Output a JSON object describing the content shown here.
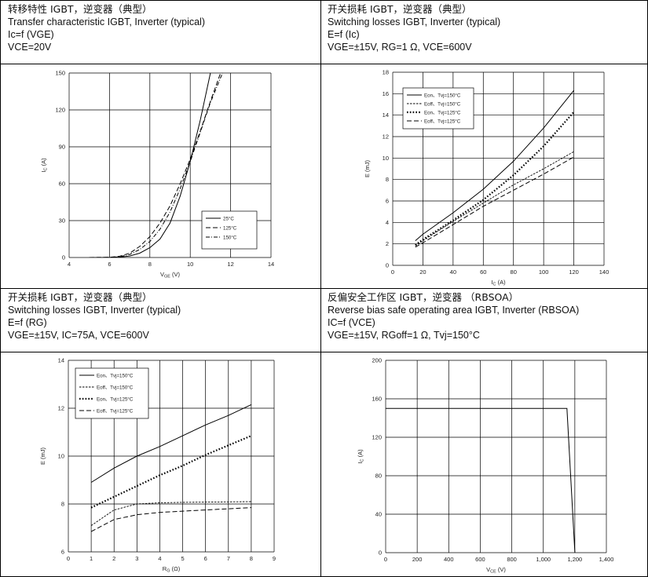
{
  "cells": [
    {
      "caption": {
        "line1": "转移特性 IGBT，逆变器（典型）",
        "line2": "Transfer characteristic IGBT, Inverter (typical)",
        "line3": "Ic=f (VGE)",
        "line4": "VCE=20V"
      },
      "chart_data": {
        "type": "line",
        "xlabel": "VGE (V)",
        "ylabel": "IC (A)",
        "xlim": [
          4,
          14
        ],
        "ylim": [
          0,
          150
        ],
        "xticks": [
          "4",
          "6",
          "8",
          "10",
          "12",
          "14"
        ],
        "yticks": [
          "0",
          "30",
          "60",
          "90",
          "120",
          "150"
        ],
        "grid": true,
        "legend_position": "bottom-right",
        "series": [
          {
            "name": "25°C",
            "style": "solid",
            "x": [
              5.0,
              6.0,
              6.5,
              7.0,
              7.5,
              8.0,
              8.5,
              9.0,
              9.5,
              10.0,
              10.5,
              11.0
            ],
            "y": [
              0,
              0,
              0.3,
              1.2,
              3.5,
              8.0,
              15.0,
              28.0,
              50.0,
              78.0,
              112.0,
              150.0
            ]
          },
          {
            "name": "125°C",
            "style": "dashed",
            "x": [
              5.0,
              6.0,
              6.5,
              7.0,
              7.5,
              8.0,
              8.5,
              9.0,
              9.5,
              10.0,
              10.5,
              11.0,
              11.5
            ],
            "y": [
              0,
              0.2,
              1.0,
              3.5,
              9.0,
              17.0,
              28.0,
              42.0,
              60.0,
              80.0,
              103.0,
              127.0,
              150.0
            ]
          },
          {
            "name": "150°C",
            "style": "dashdot",
            "x": [
              5.0,
              6.0,
              6.5,
              7.0,
              7.5,
              8.0,
              8.5,
              9.0,
              9.5,
              10.0,
              10.5,
              11.0,
              11.6
            ],
            "y": [
              0,
              0.1,
              0.6,
              2.5,
              6.5,
              13.0,
              23.0,
              37.0,
              56.0,
              78.0,
              102.0,
              126.0,
              150.0
            ]
          }
        ]
      }
    },
    {
      "caption": {
        "line1": "开关损耗 IGBT，逆变器（典型）",
        "line2": "Switching losses IGBT, Inverter (typical)",
        "line3": "E=f (Ic)",
        "line4": "VGE=±15V, RG=1 Ω, VCE=600V"
      },
      "chart_data": {
        "type": "line",
        "xlabel": "IC (A)",
        "ylabel": "E (mJ)",
        "xlim": [
          0,
          140
        ],
        "ylim": [
          0,
          18
        ],
        "xticks": [
          "0",
          "20",
          "40",
          "60",
          "80",
          "100",
          "120",
          "140"
        ],
        "yticks": [
          "0",
          "2",
          "4",
          "6",
          "8",
          "10",
          "12",
          "14",
          "16",
          "18"
        ],
        "grid": true,
        "legend_position": "top-left",
        "series": [
          {
            "name": "Eon、Tvj=150°C",
            "style": "solid",
            "x": [
              15,
              20,
              40,
              60,
              80,
              100,
              120
            ],
            "y": [
              2.3,
              2.9,
              4.9,
              7.1,
              9.7,
              12.8,
              16.3
            ]
          },
          {
            "name": "Eoff、Tvj=150°C",
            "style": "dashed-fine",
            "x": [
              15,
              20,
              40,
              60,
              80,
              100,
              120
            ],
            "y": [
              1.8,
              2.3,
              4.1,
              5.8,
              7.5,
              9.0,
              10.6
            ]
          },
          {
            "name": "Eon、Tvj=125°C",
            "style": "dotted",
            "x": [
              15,
              20,
              40,
              60,
              80,
              100,
              120
            ],
            "y": [
              1.9,
              2.4,
              4.2,
              6.1,
              8.4,
              11.1,
              14.3
            ]
          },
          {
            "name": "Eoff、Tvj=125°C",
            "style": "dashed",
            "x": [
              15,
              20,
              40,
              60,
              80,
              100,
              120
            ],
            "y": [
              1.7,
              2.1,
              3.8,
              5.5,
              7.0,
              8.5,
              10.1
            ]
          }
        ]
      }
    },
    {
      "caption": {
        "line1": "开关损耗 IGBT，逆变器（典型）",
        "line2": "Switching losses IGBT, Inverter (typical)",
        "line3": "E=f (RG)",
        "line4": "VGE=±15V, IC=75A, VCE=600V"
      },
      "chart_data": {
        "type": "line",
        "xlabel": "RG (Ω)",
        "ylabel": "E (mJ)",
        "xlim": [
          0,
          9
        ],
        "ylim": [
          6,
          14
        ],
        "xticks": [
          "0",
          "1",
          "2",
          "3",
          "4",
          "5",
          "6",
          "7",
          "8",
          "9"
        ],
        "yticks": [
          "6",
          "8",
          "10",
          "12",
          "14"
        ],
        "grid": true,
        "legend_position": "top-left",
        "series": [
          {
            "name": "Eon、Tvj=150°C",
            "style": "solid",
            "x": [
              1,
              2,
              3,
              4,
              5,
              6,
              7,
              8
            ],
            "y": [
              8.9,
              9.5,
              10.0,
              10.4,
              10.85,
              11.3,
              11.7,
              12.15
            ]
          },
          {
            "name": "Eoff、Tvj=150°C",
            "style": "dashed-fine",
            "x": [
              1,
              2,
              3,
              4,
              5,
              6,
              7,
              8
            ],
            "y": [
              7.1,
              7.75,
              8.0,
              8.05,
              8.07,
              8.08,
              8.09,
              8.1
            ]
          },
          {
            "name": "Eon、Tvj=125°C",
            "style": "dotted",
            "x": [
              1,
              2,
              3,
              4,
              5,
              6,
              7,
              8
            ],
            "y": [
              7.85,
              8.3,
              8.75,
              9.2,
              9.6,
              10.05,
              10.45,
              10.85
            ]
          },
          {
            "name": "Eoff、Tvj=125°C",
            "style": "dashed",
            "x": [
              1,
              2,
              3,
              4,
              5,
              6,
              7,
              8
            ],
            "y": [
              6.85,
              7.35,
              7.55,
              7.65,
              7.7,
              7.75,
              7.8,
              7.85
            ]
          }
        ]
      }
    },
    {
      "caption": {
        "line1": "反偏安全工作区 IGBT，逆变器 （RBSOA）",
        "line2": "Reverse bias safe operating area IGBT, Inverter (RBSOA)",
        "line3": "IC=f (VCE)",
        "line4": "VGE=±15V, RGoff=1 Ω, Tvj=150°C"
      },
      "chart_data": {
        "type": "line",
        "xlabel": "VCE (V)",
        "ylabel": "IC (A)",
        "xlim": [
          0,
          1400
        ],
        "ylim": [
          0,
          200
        ],
        "xticks": [
          "0",
          "200",
          "400",
          "600",
          "800",
          "1,000",
          "1,200",
          "1,400"
        ],
        "yticks": [
          "0",
          "40",
          "80",
          "120",
          "160",
          "200"
        ],
        "grid": true,
        "series": [
          {
            "style": "solid",
            "x": [
              0,
              1150,
              1200
            ],
            "y": [
              150,
              150,
              0
            ]
          }
        ]
      }
    }
  ]
}
